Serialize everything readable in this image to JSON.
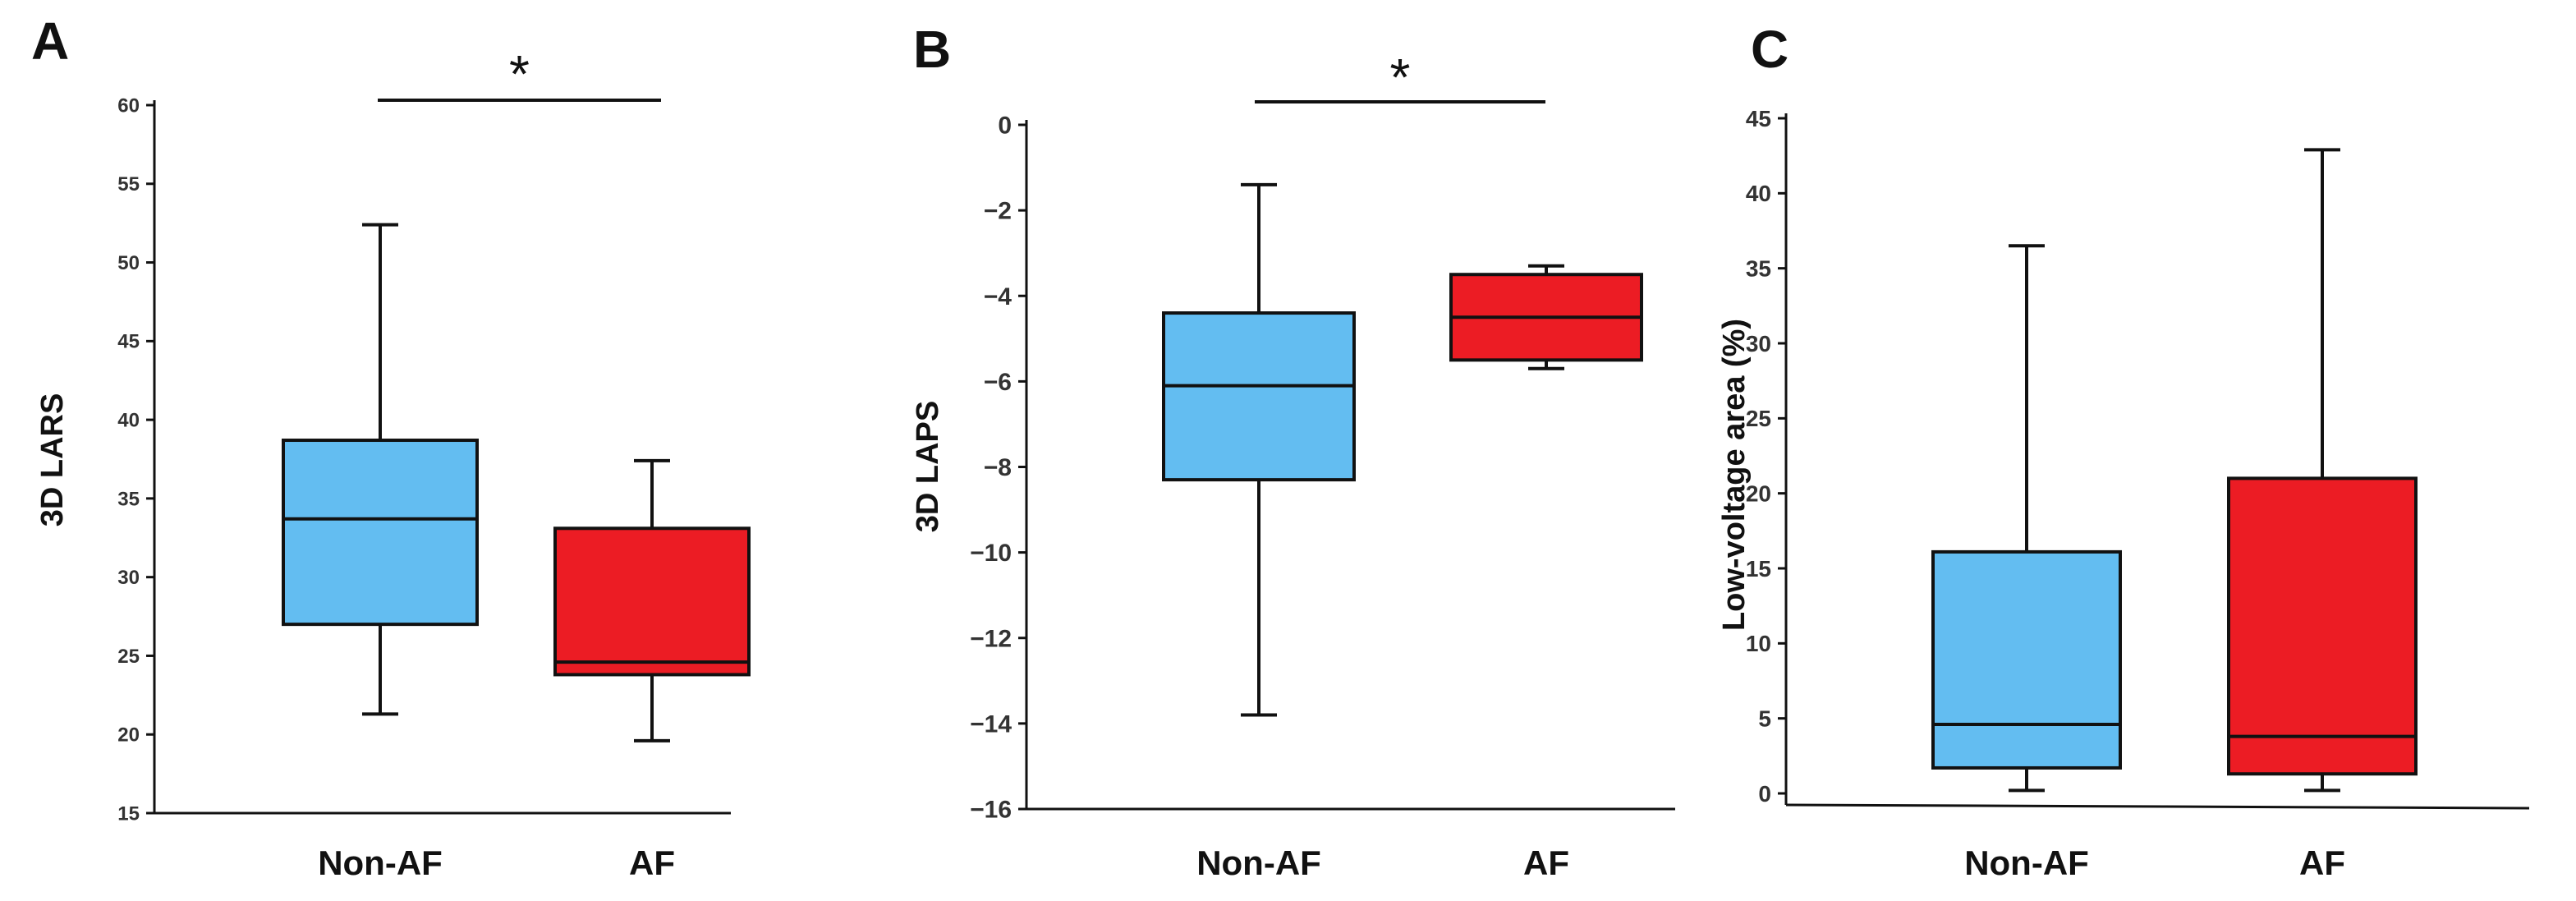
{
  "colors": {
    "non_af": "#63bdf1",
    "af": "#ec1c24",
    "axis": "#111111"
  },
  "chart_data": [
    {
      "type": "box",
      "panel": "A",
      "ylabel": "3D LARS",
      "ylim": [
        15,
        60
      ],
      "yticks": [
        15,
        20,
        25,
        30,
        35,
        40,
        45,
        50,
        55,
        60
      ],
      "categories": [
        "Non-AF",
        "AF"
      ],
      "significance": "*",
      "boxes": [
        {
          "name": "Non-AF",
          "min": 21.3,
          "q1": 27.0,
          "median": 33.7,
          "q3": 38.7,
          "max": 52.4
        },
        {
          "name": "AF",
          "min": 19.6,
          "q1": 23.8,
          "median": 24.6,
          "q3": 33.1,
          "max": 37.4
        }
      ]
    },
    {
      "type": "box",
      "panel": "B",
      "ylabel": "3D LAPS",
      "ylim": [
        -16,
        0
      ],
      "yticks": [
        "0",
        "−2",
        "−4",
        "−6",
        "−8",
        "−10",
        "−12",
        "−14",
        "−16"
      ],
      "categories": [
        "Non-AF",
        "AF"
      ],
      "significance": "*",
      "boxes": [
        {
          "name": "Non-AF",
          "min": -13.8,
          "q1": -8.3,
          "median": -6.1,
          "q3": -4.4,
          "max": -1.4
        },
        {
          "name": "AF",
          "min": -5.7,
          "q1": -5.5,
          "median": -4.5,
          "q3": -3.5,
          "max": -3.3
        }
      ]
    },
    {
      "type": "box",
      "panel": "C",
      "ylabel": "Low-voltage area (%)",
      "ylim": [
        0,
        45
      ],
      "yticks": [
        0,
        5,
        10,
        15,
        20,
        25,
        30,
        35,
        40,
        45
      ],
      "categories": [
        "Non-AF",
        "AF"
      ],
      "significance": "",
      "boxes": [
        {
          "name": "Non-AF",
          "min": 0.2,
          "q1": 1.7,
          "median": 4.6,
          "q3": 16.1,
          "max": 36.5
        },
        {
          "name": "AF",
          "min": 0.2,
          "q1": 1.3,
          "median": 3.8,
          "q3": 21.0,
          "max": 42.9
        }
      ]
    }
  ]
}
